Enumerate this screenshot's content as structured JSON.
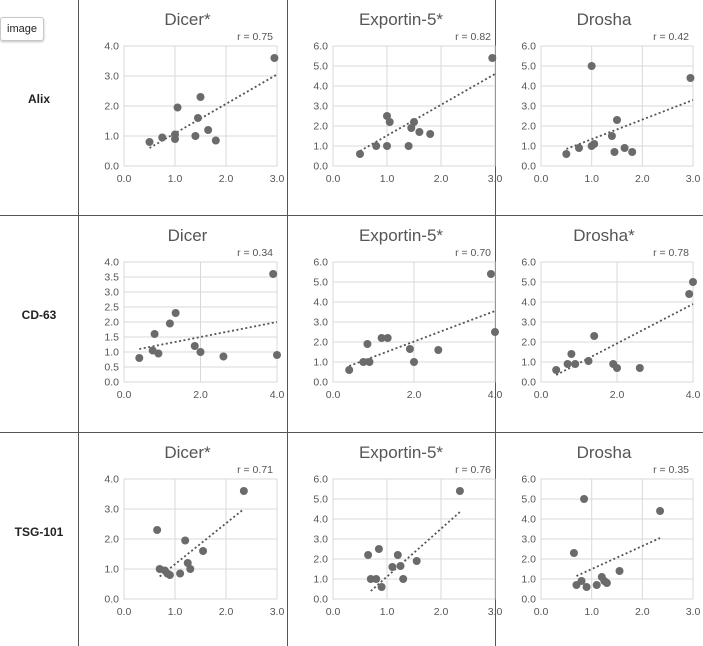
{
  "tag_label": "image",
  "rows": [
    {
      "label": "Alix"
    },
    {
      "label": "CD-63"
    },
    {
      "label": "TSG-101"
    }
  ],
  "colors": {
    "point": "#6b6b6b",
    "trend": "#555555",
    "grid": "#d9d9d9",
    "axis_text": "#555555"
  },
  "chart_data": [
    {
      "type": "scatter",
      "title": "Dicer*",
      "r_label": "r = 0.75",
      "xlim": [
        0,
        3
      ],
      "ylim": [
        0,
        4
      ],
      "xticks": [
        "0.0",
        "1.0",
        "2.0",
        "3.0"
      ],
      "yticks": [
        "0.0",
        "1.0",
        "2.0",
        "3.0",
        "4.0"
      ],
      "points": [
        [
          0.5,
          0.8
        ],
        [
          0.75,
          0.95
        ],
        [
          1.0,
          0.9
        ],
        [
          1.0,
          1.05
        ],
        [
          1.05,
          1.95
        ],
        [
          1.4,
          1.0
        ],
        [
          1.45,
          1.6
        ],
        [
          1.5,
          2.3
        ],
        [
          1.65,
          1.2
        ],
        [
          1.8,
          0.85
        ],
        [
          2.95,
          3.6
        ]
      ],
      "trend": [
        [
          0.5,
          0.6
        ],
        [
          3.0,
          3.05
        ]
      ]
    },
    {
      "type": "scatter",
      "title": "Exportin-5*",
      "r_label": "r = 0.82",
      "xlim": [
        0,
        3
      ],
      "ylim": [
        0,
        6
      ],
      "xticks": [
        "0.0",
        "1.0",
        "2.0",
        "3.0"
      ],
      "yticks": [
        "0.0",
        "1.0",
        "2.0",
        "3.0",
        "4.0",
        "5.0",
        "6.0"
      ],
      "points": [
        [
          0.5,
          0.6
        ],
        [
          0.8,
          1.0
        ],
        [
          1.0,
          1.0
        ],
        [
          1.0,
          2.5
        ],
        [
          1.05,
          2.2
        ],
        [
          1.4,
          1.0
        ],
        [
          1.45,
          1.9
        ],
        [
          1.5,
          2.2
        ],
        [
          1.6,
          1.7
        ],
        [
          1.8,
          1.6
        ],
        [
          2.95,
          5.4
        ]
      ],
      "trend": [
        [
          0.5,
          0.75
        ],
        [
          3.0,
          4.6
        ]
      ]
    },
    {
      "type": "scatter",
      "title": "Drosha",
      "r_label": "r = 0.42",
      "xlim": [
        0,
        3
      ],
      "ylim": [
        0,
        6
      ],
      "xticks": [
        "0.0",
        "1.0",
        "2.0",
        "3.0"
      ],
      "yticks": [
        "0.0",
        "1.0",
        "2.0",
        "3.0",
        "4.0",
        "5.0",
        "6.0"
      ],
      "points": [
        [
          0.5,
          0.6
        ],
        [
          0.75,
          0.9
        ],
        [
          1.0,
          1.0
        ],
        [
          1.0,
          5.0
        ],
        [
          1.05,
          1.1
        ],
        [
          1.4,
          1.5
        ],
        [
          1.45,
          0.7
        ],
        [
          1.5,
          2.3
        ],
        [
          1.65,
          0.9
        ],
        [
          1.8,
          0.7
        ],
        [
          2.95,
          4.4
        ]
      ],
      "trend": [
        [
          0.5,
          0.85
        ],
        [
          3.0,
          3.3
        ]
      ]
    },
    {
      "type": "scatter",
      "title": "Dicer",
      "r_label": "r = 0.34",
      "xlim": [
        0,
        4
      ],
      "ylim": [
        0,
        4
      ],
      "xticks": [
        "0.0",
        "2.0",
        "4.0"
      ],
      "yticks": [
        "0.0",
        "0.5",
        "1.0",
        "1.5",
        "2.0",
        "2.5",
        "3.0",
        "3.5",
        "4.0"
      ],
      "points": [
        [
          0.4,
          0.8
        ],
        [
          0.75,
          1.05
        ],
        [
          0.8,
          1.6
        ],
        [
          0.9,
          0.95
        ],
        [
          1.2,
          1.95
        ],
        [
          1.35,
          2.3
        ],
        [
          1.85,
          1.2
        ],
        [
          2.0,
          1.0
        ],
        [
          2.6,
          0.85
        ],
        [
          3.9,
          3.6
        ],
        [
          4.0,
          0.9
        ]
      ],
      "trend": [
        [
          0.4,
          1.1
        ],
        [
          4.0,
          2.0
        ]
      ]
    },
    {
      "type": "scatter",
      "title": "Exportin-5*",
      "r_label": "r = 0.70",
      "xlim": [
        0,
        4
      ],
      "ylim": [
        0,
        6
      ],
      "xticks": [
        "0.0",
        "2.0",
        "4.0"
      ],
      "yticks": [
        "0.0",
        "1.0",
        "2.0",
        "3.0",
        "4.0",
        "5.0",
        "6.0"
      ],
      "points": [
        [
          0.4,
          0.6
        ],
        [
          0.75,
          1.0
        ],
        [
          0.85,
          1.9
        ],
        [
          0.9,
          1.0
        ],
        [
          1.2,
          2.2
        ],
        [
          1.35,
          2.2
        ],
        [
          1.9,
          1.65
        ],
        [
          2.0,
          1.0
        ],
        [
          2.6,
          1.6
        ],
        [
          3.9,
          5.4
        ],
        [
          4.0,
          2.5
        ]
      ],
      "trend": [
        [
          0.4,
          0.8
        ],
        [
          4.0,
          3.55
        ]
      ]
    },
    {
      "type": "scatter",
      "title": "Drosha*",
      "r_label": "r = 0.78",
      "xlim": [
        0,
        4
      ],
      "ylim": [
        0,
        6
      ],
      "xticks": [
        "0.0",
        "2.0",
        "4.0"
      ],
      "yticks": [
        "0.0",
        "1.0",
        "2.0",
        "3.0",
        "4.0",
        "5.0",
        "6.0"
      ],
      "points": [
        [
          0.4,
          0.6
        ],
        [
          0.7,
          0.9
        ],
        [
          0.8,
          1.4
        ],
        [
          0.9,
          0.9
        ],
        [
          1.25,
          1.05
        ],
        [
          1.4,
          2.3
        ],
        [
          1.9,
          0.9
        ],
        [
          2.0,
          0.7
        ],
        [
          2.6,
          0.7
        ],
        [
          3.9,
          4.4
        ],
        [
          4.0,
          5.0
        ]
      ],
      "trend": [
        [
          0.4,
          0.35
        ],
        [
          4.0,
          3.9
        ]
      ]
    },
    {
      "type": "scatter",
      "title": "Dicer*",
      "r_label": "r = 0.71",
      "xlim": [
        0,
        3
      ],
      "ylim": [
        0,
        4
      ],
      "xticks": [
        "0.0",
        "1.0",
        "2.0",
        "3.0"
      ],
      "yticks": [
        "0.0",
        "1.0",
        "2.0",
        "3.0",
        "4.0"
      ],
      "points": [
        [
          0.65,
          2.3
        ],
        [
          0.7,
          1.0
        ],
        [
          0.8,
          0.95
        ],
        [
          0.85,
          0.85
        ],
        [
          0.9,
          0.8
        ],
        [
          1.1,
          0.85
        ],
        [
          1.2,
          1.95
        ],
        [
          1.25,
          1.2
        ],
        [
          1.3,
          1.0
        ],
        [
          1.55,
          1.6
        ],
        [
          2.35,
          3.6
        ]
      ],
      "trend": [
        [
          0.7,
          0.75
        ],
        [
          2.35,
          3.0
        ]
      ]
    },
    {
      "type": "scatter",
      "title": "Exportin-5*",
      "r_label": "r = 0.76",
      "xlim": [
        0,
        3
      ],
      "ylim": [
        0,
        6
      ],
      "xticks": [
        "0.0",
        "1.0",
        "2.0",
        "3.0"
      ],
      "yticks": [
        "0.0",
        "1.0",
        "2.0",
        "3.0",
        "4.0",
        "5.0",
        "6.0"
      ],
      "points": [
        [
          0.65,
          2.2
        ],
        [
          0.7,
          1.0
        ],
        [
          0.8,
          1.0
        ],
        [
          0.85,
          2.5
        ],
        [
          0.9,
          0.6
        ],
        [
          1.1,
          1.6
        ],
        [
          1.2,
          2.2
        ],
        [
          1.25,
          1.65
        ],
        [
          1.3,
          1.0
        ],
        [
          1.55,
          1.9
        ],
        [
          2.35,
          5.4
        ]
      ],
      "trend": [
        [
          0.7,
          0.4
        ],
        [
          2.35,
          4.35
        ]
      ]
    },
    {
      "type": "scatter",
      "title": "Drosha",
      "r_label": "r = 0.35",
      "xlim": [
        0,
        3
      ],
      "ylim": [
        0,
        6
      ],
      "xticks": [
        "0.0",
        "1.0",
        "2.0",
        "3.0"
      ],
      "yticks": [
        "0.0",
        "1.0",
        "2.0",
        "3.0",
        "4.0",
        "5.0",
        "6.0"
      ],
      "points": [
        [
          0.65,
          2.3
        ],
        [
          0.7,
          0.7
        ],
        [
          0.8,
          0.9
        ],
        [
          0.85,
          5.0
        ],
        [
          0.9,
          0.6
        ],
        [
          1.1,
          0.7
        ],
        [
          1.2,
          1.1
        ],
        [
          1.25,
          0.9
        ],
        [
          1.3,
          0.8
        ],
        [
          1.55,
          1.4
        ],
        [
          2.35,
          4.4
        ]
      ],
      "trend": [
        [
          0.7,
          1.15
        ],
        [
          2.35,
          3.05
        ]
      ]
    }
  ]
}
